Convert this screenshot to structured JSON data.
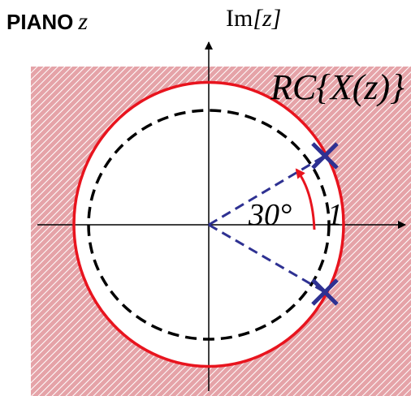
{
  "plane": {
    "title": "PIANO",
    "variable": "z"
  },
  "axes": {
    "imag_label_prefix": "Im",
    "imag_label_var": "[z]"
  },
  "roc": {
    "label": "RC{X(z)}"
  },
  "angle": {
    "label": "30°",
    "degrees": 30
  },
  "radius": {
    "label": "1",
    "value": 1
  },
  "poles": [
    {
      "magnitude": 1,
      "angle_deg": 30
    },
    {
      "magnitude": 1,
      "angle_deg": -30
    }
  ],
  "colors": {
    "roc_fill": "#e5a3a8",
    "roc_hatch": "#ffffff",
    "roc_boundary": "#e8141e",
    "unit_circle": "#000000",
    "pole_marker": "#2e3192",
    "pole_vector": "#2e3192",
    "angle_arrow": "#e8141e",
    "axes": "#000000"
  }
}
